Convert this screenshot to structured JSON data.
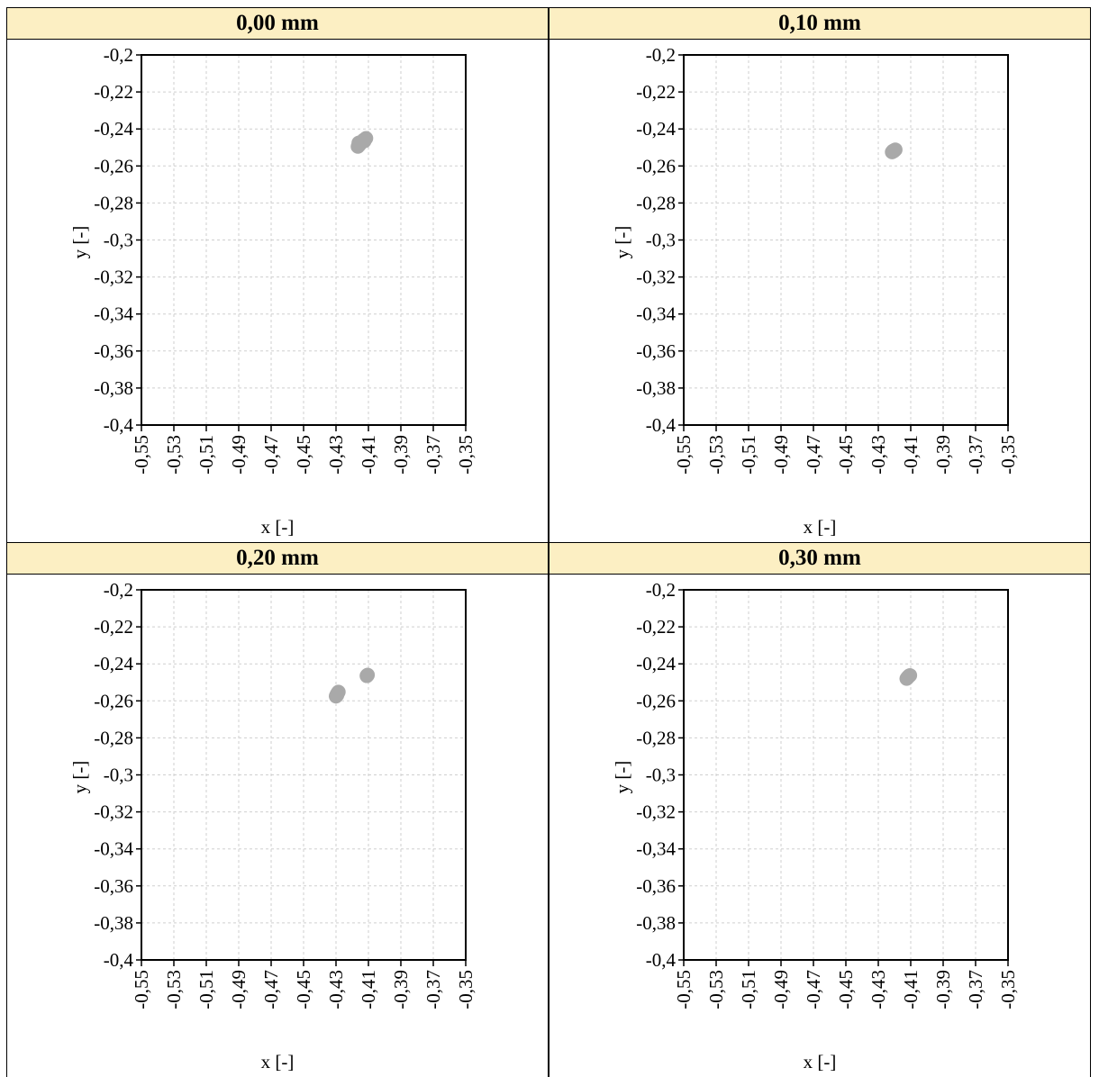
{
  "panels": [
    {
      "title": "0,00 mm",
      "chart_data": {
        "type": "scatter",
        "xlabel": "x [-]",
        "ylabel": "y [-]",
        "xlim": [
          -0.55,
          -0.35
        ],
        "ylim": [
          -0.4,
          -0.2
        ],
        "xticks": [
          "-0,55",
          "-0,53",
          "-0,51",
          "-0,49",
          "-0,47",
          "-0,45",
          "-0,43",
          "-0,41",
          "-0,39",
          "-0,37",
          "-0,35"
        ],
        "yticks": [
          "-0,2",
          "-0,22",
          "-0,24",
          "-0,26",
          "-0,28",
          "-0,3",
          "-0,32",
          "-0,34",
          "-0,36",
          "-0,38",
          "-0,4"
        ],
        "grid": true,
        "marker_color": "#a9a9a9",
        "points": [
          [
            -0.4165,
            -0.2495
          ],
          [
            -0.416,
            -0.2475
          ],
          [
            -0.4145,
            -0.2475
          ],
          [
            -0.413,
            -0.246
          ],
          [
            -0.4115,
            -0.245
          ],
          [
            -0.4125,
            -0.2465
          ],
          [
            -0.4155,
            -0.2485
          ]
        ]
      }
    },
    {
      "title": "0,10 mm",
      "chart_data": {
        "type": "scatter",
        "xlabel": "x [-]",
        "ylabel": "y [-]",
        "xlim": [
          -0.55,
          -0.35
        ],
        "ylim": [
          -0.4,
          -0.2
        ],
        "xticks": [
          "-0,55",
          "-0,53",
          "-0,51",
          "-0,49",
          "-0,47",
          "-0,45",
          "-0,43",
          "-0,41",
          "-0,39",
          "-0,37",
          "-0,35"
        ],
        "yticks": [
          "-0,2",
          "-0,22",
          "-0,24",
          "-0,26",
          "-0,28",
          "-0,3",
          "-0,32",
          "-0,34",
          "-0,36",
          "-0,38",
          "-0,4"
        ],
        "grid": true,
        "marker_color": "#a9a9a9",
        "points": [
          [
            -0.4215,
            -0.2525
          ],
          [
            -0.4205,
            -0.252
          ],
          [
            -0.42,
            -0.2515
          ],
          [
            -0.4195,
            -0.2512
          ],
          [
            -0.4208,
            -0.2518
          ]
        ]
      }
    },
    {
      "title": "0,20 mm",
      "chart_data": {
        "type": "scatter",
        "xlabel": "x [-]",
        "ylabel": "y [-]",
        "xlim": [
          -0.55,
          -0.35
        ],
        "ylim": [
          -0.4,
          -0.2
        ],
        "xticks": [
          "-0,55",
          "-0,53",
          "-0,51",
          "-0,49",
          "-0,47",
          "-0,45",
          "-0,43",
          "-0,41",
          "-0,39",
          "-0,37",
          "-0,35"
        ],
        "yticks": [
          "-0,2",
          "-0,22",
          "-0,24",
          "-0,26",
          "-0,28",
          "-0,3",
          "-0,32",
          "-0,34",
          "-0,36",
          "-0,38",
          "-0,4"
        ],
        "grid": true,
        "marker_color": "#a9a9a9",
        "points": [
          [
            -0.43,
            -0.2575
          ],
          [
            -0.4295,
            -0.2565
          ],
          [
            -0.429,
            -0.2558
          ],
          [
            -0.4285,
            -0.2552
          ],
          [
            -0.4293,
            -0.2568
          ],
          [
            -0.411,
            -0.2465
          ],
          [
            -0.4105,
            -0.246
          ],
          [
            -0.4108,
            -0.2463
          ]
        ]
      }
    },
    {
      "title": "0,30 mm",
      "chart_data": {
        "type": "scatter",
        "xlabel": "x [-]",
        "ylabel": "y [-]",
        "xlim": [
          -0.55,
          -0.35
        ],
        "ylim": [
          -0.4,
          -0.2
        ],
        "xticks": [
          "-0,55",
          "-0,53",
          "-0,51",
          "-0,49",
          "-0,47",
          "-0,45",
          "-0,43",
          "-0,41",
          "-0,39",
          "-0,37",
          "-0,35"
        ],
        "yticks": [
          "-0,2",
          "-0,22",
          "-0,24",
          "-0,26",
          "-0,28",
          "-0,3",
          "-0,32",
          "-0,34",
          "-0,36",
          "-0,38",
          "-0,4"
        ],
        "grid": true,
        "marker_color": "#a9a9a9",
        "points": [
          [
            -0.4125,
            -0.248
          ],
          [
            -0.412,
            -0.2475
          ],
          [
            -0.4115,
            -0.247
          ],
          [
            -0.411,
            -0.2465
          ],
          [
            -0.4105,
            -0.2462
          ],
          [
            -0.4118,
            -0.2472
          ]
        ]
      }
    }
  ]
}
